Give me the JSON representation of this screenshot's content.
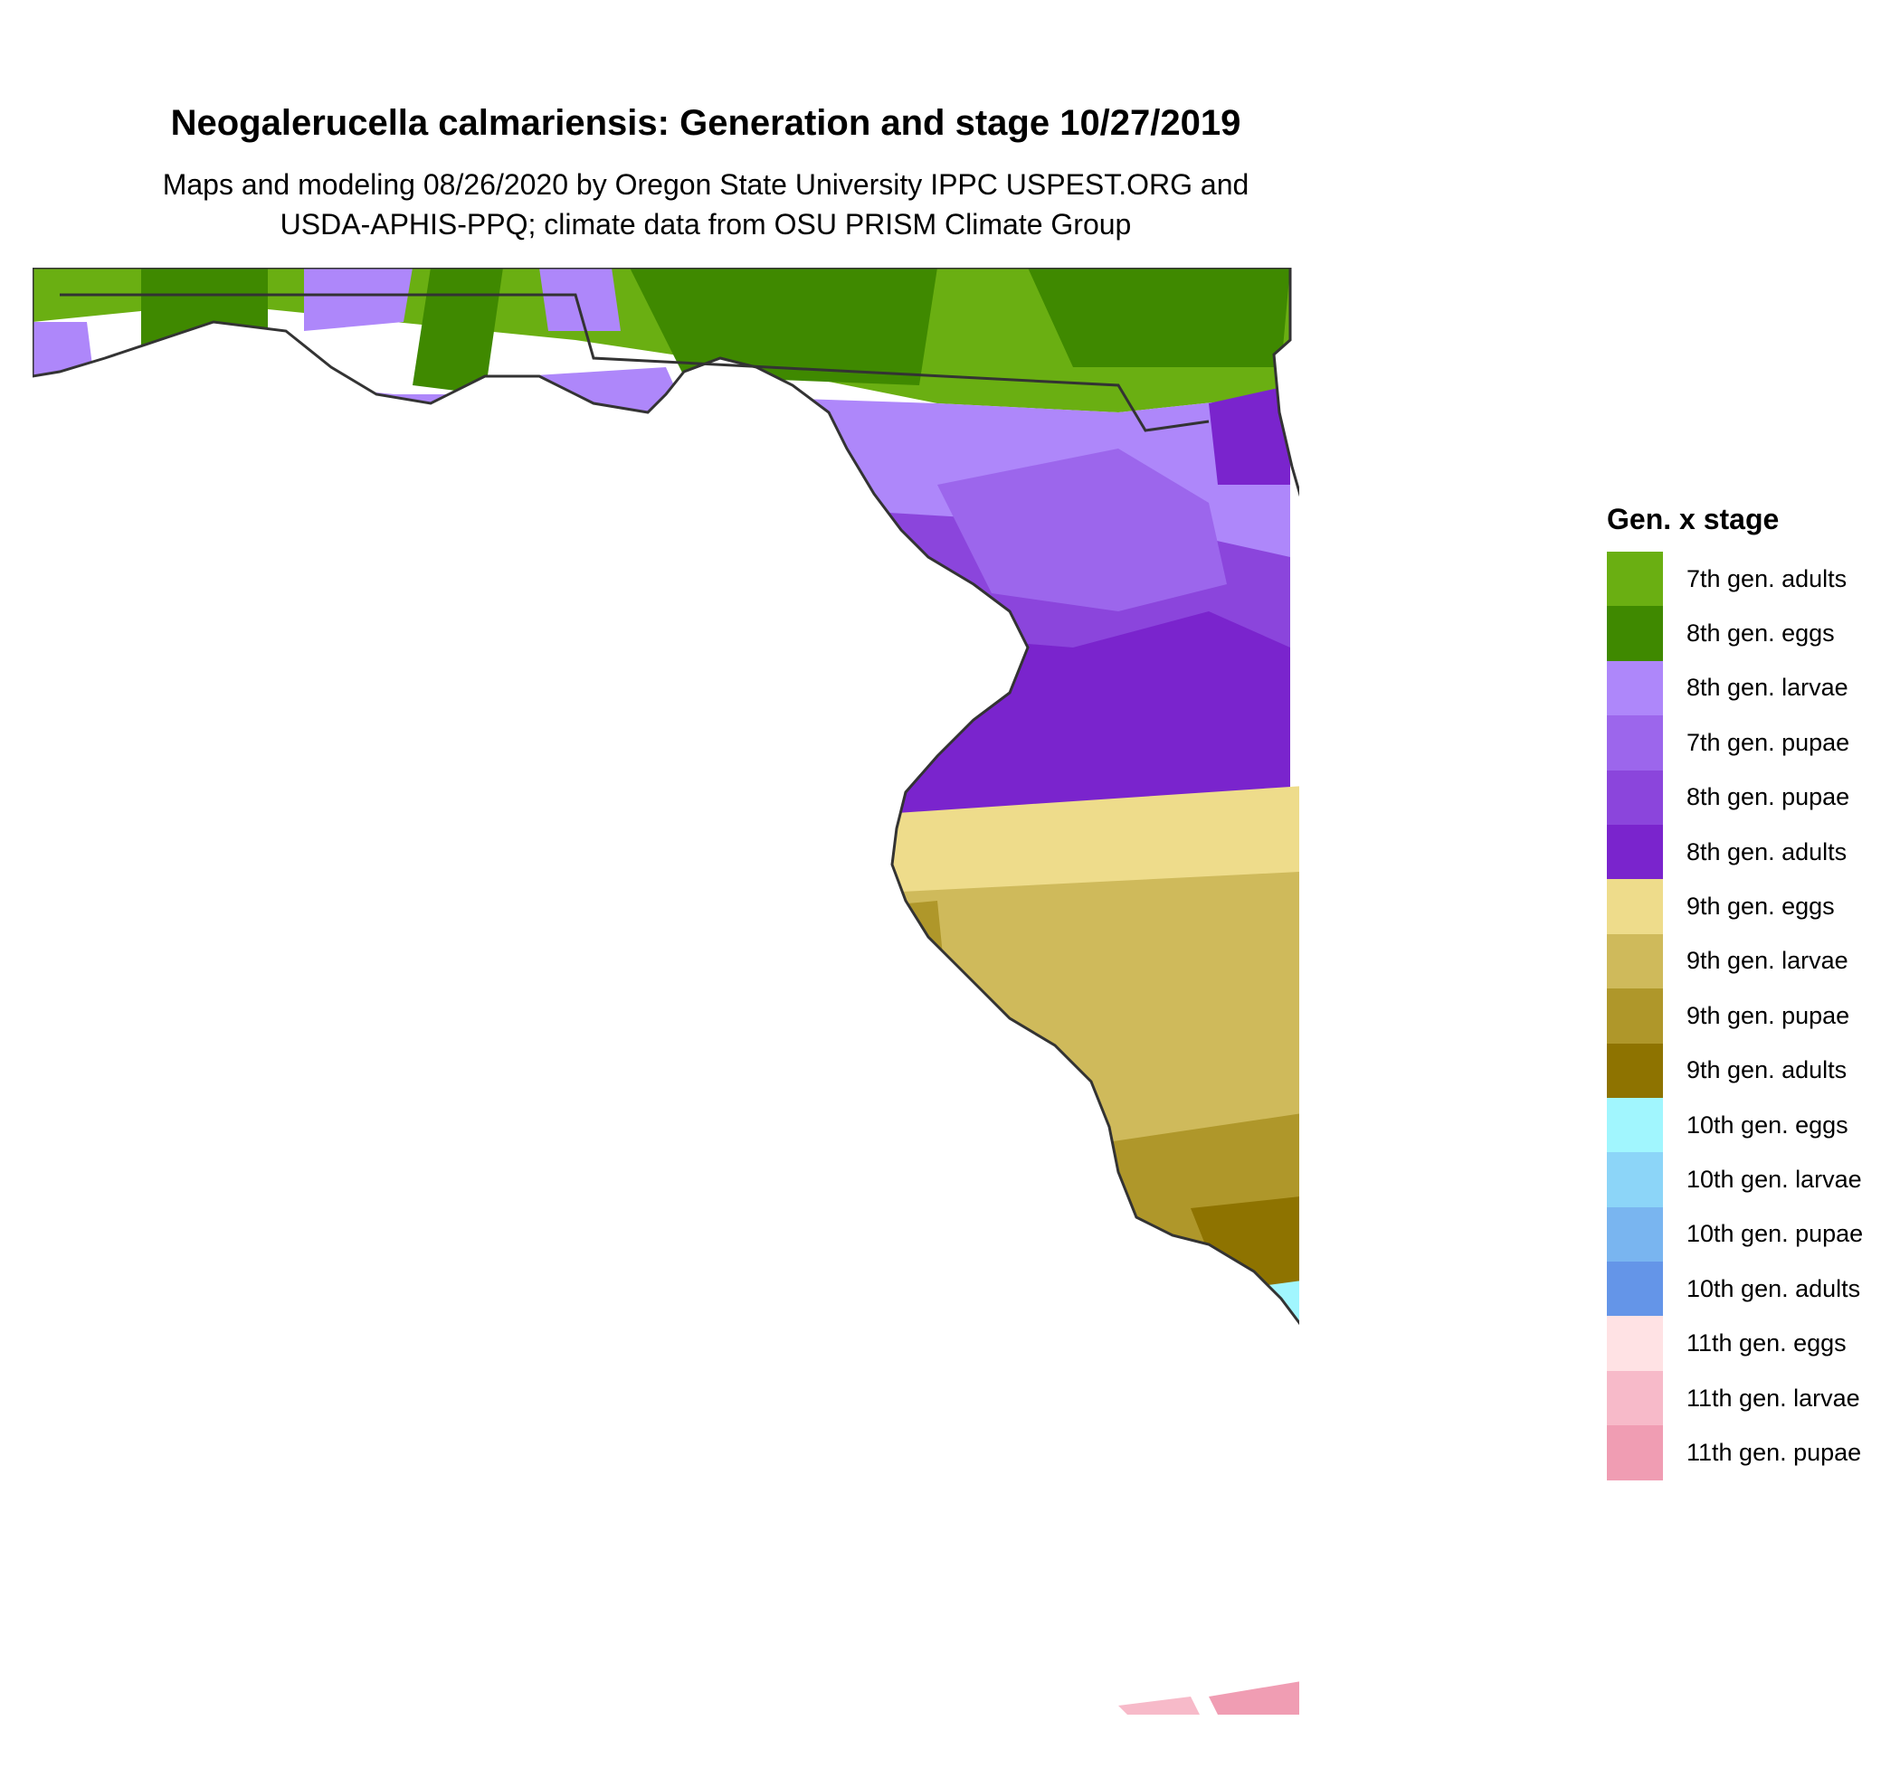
{
  "header": {
    "title": "Neogalerucella calmariensis: Generation and stage 10/27/2019",
    "subtitle_line1": "Maps and modeling 08/26/2020 by Oregon State University IPPC USPEST.ORG and",
    "subtitle_line2": "USDA-APHIS-PPQ; climate data from OSU PRISM Climate Group"
  },
  "legend": {
    "title": "Gen. x stage",
    "items": [
      {
        "label": "7th gen. adults",
        "color": "#6AAF12"
      },
      {
        "label": "8th gen. eggs",
        "color": "#3F8900"
      },
      {
        "label": "8th gen. larvae",
        "color": "#AE87FA"
      },
      {
        "label": "7th gen. pupae",
        "color": "#9C66EC"
      },
      {
        "label": "8th gen. pupae",
        "color": "#8B45DC"
      },
      {
        "label": "8th gen. adults",
        "color": "#7A24CD"
      },
      {
        "label": "9th gen. eggs",
        "color": "#EEDC8B"
      },
      {
        "label": "9th gen. larvae",
        "color": "#CFBA5B"
      },
      {
        "label": "9th gen. pupae",
        "color": "#AF972A"
      },
      {
        "label": "9th gen. adults",
        "color": "#8E7300"
      },
      {
        "label": "10th gen. eggs",
        "color": "#A1F6FE"
      },
      {
        "label": "10th gen. larvae",
        "color": "#8CD5F8"
      },
      {
        "label": "10th gen. pupae",
        "color": "#79B5F0"
      },
      {
        "label": "10th gen. adults",
        "color": "#6495E8"
      },
      {
        "label": "11th gen. eggs",
        "color": "#FFE2E4"
      },
      {
        "label": "11th gen. larvae",
        "color": "#F7BAC9"
      },
      {
        "label": "11th gen. pupae",
        "color": "#F09DB3"
      }
    ]
  },
  "map": {
    "outline_color": "#333333"
  }
}
